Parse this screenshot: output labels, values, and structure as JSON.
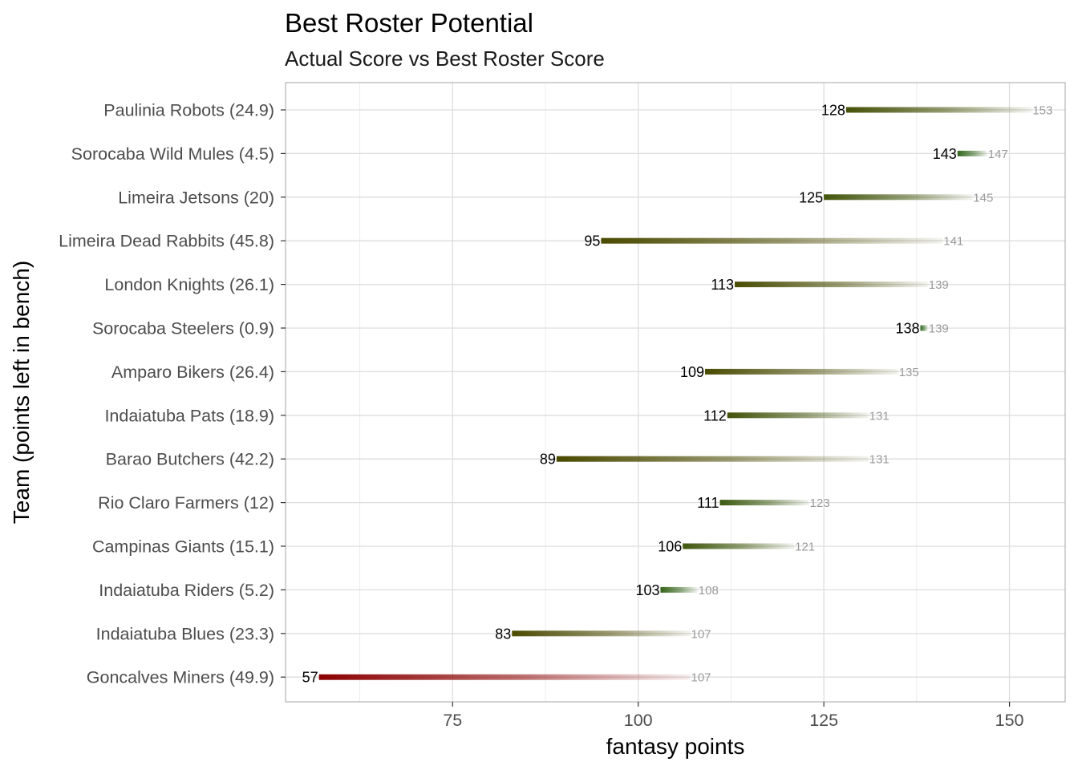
{
  "chart_data": {
    "type": "dumbbell",
    "title": "Best Roster Potential",
    "subtitle": "Actual Score vs Best Roster Score",
    "xlabel": "fantasy points",
    "ylabel": "Team (points left in bench)",
    "xlim": [
      52.5,
      157.5
    ],
    "xticks": [
      75,
      100,
      125,
      150
    ],
    "grid": true,
    "legend": "none",
    "colors": {
      "low_efficiency": "#8b0000",
      "mid_efficiency": "#4a4a00",
      "high_efficiency": "#2e6b1f",
      "best_label": "#9a9a9a",
      "gridline": "#dedede",
      "panel_border": "#b3b3b3"
    },
    "teams": [
      {
        "label": "Paulinia Robots (24.9)",
        "actual": 128,
        "best": 153,
        "actual_label": "128",
        "best_label": "153"
      },
      {
        "label": "Sorocaba Wild Mules (4.5)",
        "actual": 143,
        "best": 147,
        "actual_label": "143",
        "best_label": "147"
      },
      {
        "label": "Limeira Jetsons (20)",
        "actual": 125,
        "best": 145,
        "actual_label": "125",
        "best_label": "145"
      },
      {
        "label": "Limeira Dead Rabbits (45.8)",
        "actual": 95,
        "best": 141,
        "actual_label": "95",
        "best_label": "141"
      },
      {
        "label": "London Knights (26.1)",
        "actual": 113,
        "best": 139,
        "actual_label": "113",
        "best_label": "139"
      },
      {
        "label": "Sorocaba Steelers (0.9)",
        "actual": 138,
        "best": 139,
        "actual_label": "138",
        "best_label": "139"
      },
      {
        "label": "Amparo Bikers (26.4)",
        "actual": 109,
        "best": 135,
        "actual_label": "109",
        "best_label": "135"
      },
      {
        "label": "Indaiatuba Pats (18.9)",
        "actual": 112,
        "best": 131,
        "actual_label": "112",
        "best_label": "131"
      },
      {
        "label": "Barao Butchers (42.2)",
        "actual": 89,
        "best": 131,
        "actual_label": "89",
        "best_label": "131"
      },
      {
        "label": "Rio Claro Farmers (12)",
        "actual": 111,
        "best": 123,
        "actual_label": "111",
        "best_label": "123"
      },
      {
        "label": "Campinas Giants (15.1)",
        "actual": 106,
        "best": 121,
        "actual_label": "106",
        "best_label": "121"
      },
      {
        "label": "Indaiatuba Riders (5.2)",
        "actual": 103,
        "best": 108,
        "actual_label": "103",
        "best_label": "108"
      },
      {
        "label": "Indaiatuba Blues (23.3)",
        "actual": 83,
        "best": 107,
        "actual_label": "83",
        "best_label": "107"
      },
      {
        "label": "Goncalves Miners (49.9)",
        "actual": 57,
        "best": 107,
        "actual_label": "57",
        "best_label": "107"
      }
    ]
  }
}
